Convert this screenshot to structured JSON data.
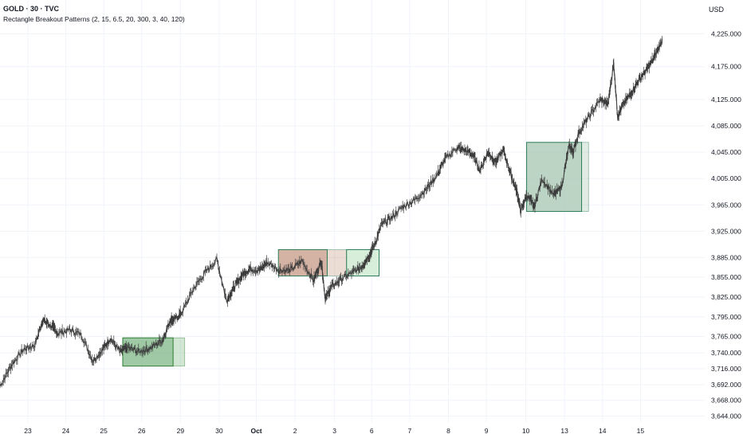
{
  "header": {
    "title": "GOLD · 30 · TVC",
    "indicator": "Rectangle Breakout Patterns (2, 15, 6.5, 20, 300, 3, 40, 120)",
    "currency": "USD"
  },
  "chart_data": {
    "type": "line",
    "title": "GOLD · 30 · TVC",
    "xlabel": "",
    "ylabel": "",
    "ylim": [
      3635,
      4240
    ],
    "xlim": [
      0,
      18.2
    ],
    "grid": true,
    "y_ticks": [
      3644,
      3668,
      3692,
      3716,
      3740,
      3765,
      3795,
      3825,
      3855,
      3885,
      3925,
      3965,
      4005,
      4045,
      4085,
      4125,
      4175,
      4225
    ],
    "x_ticks": [
      {
        "label": "23",
        "x": 0.72,
        "bold": false
      },
      {
        "label": "24",
        "x": 1.7,
        "bold": false
      },
      {
        "label": "25",
        "x": 2.68,
        "bold": false
      },
      {
        "label": "26",
        "x": 3.66,
        "bold": false
      },
      {
        "label": "29",
        "x": 4.66,
        "bold": false
      },
      {
        "label": "30",
        "x": 5.66,
        "bold": false
      },
      {
        "label": "Oct",
        "x": 6.62,
        "bold": true
      },
      {
        "label": "2",
        "x": 7.62,
        "bold": false
      },
      {
        "label": "3",
        "x": 8.64,
        "bold": false
      },
      {
        "label": "6",
        "x": 9.6,
        "bold": false
      },
      {
        "label": "7",
        "x": 10.58,
        "bold": false
      },
      {
        "label": "8",
        "x": 11.58,
        "bold": false
      },
      {
        "label": "9",
        "x": 12.56,
        "bold": false
      },
      {
        "label": "10",
        "x": 13.58,
        "bold": false
      },
      {
        "label": "13",
        "x": 14.58,
        "bold": false
      },
      {
        "label": "14",
        "x": 15.56,
        "bold": false
      },
      {
        "label": "15",
        "x": 16.54,
        "bold": false
      }
    ],
    "series": [
      {
        "x": [
          0,
          0.3,
          0.6,
          0.9,
          1.1,
          1.3,
          1.5,
          1.8,
          2.1,
          2.4,
          2.65,
          2.85,
          3.1,
          3.3,
          3.6,
          3.9,
          4.2,
          4.4,
          4.5,
          4.7,
          5.0,
          5.3,
          5.6,
          5.85,
          6.05,
          6.25,
          6.45,
          6.7,
          6.9,
          7.2,
          7.5,
          7.8,
          8.1,
          8.3,
          8.4,
          8.55,
          8.8,
          9.1,
          9.35,
          9.55,
          9.7,
          9.85,
          10.1,
          10.4,
          10.7,
          11.0,
          11.3,
          11.5,
          11.8,
          12.0,
          12.2,
          12.4,
          12.6,
          12.8,
          13.0,
          13.2,
          13.35,
          13.45,
          13.6,
          13.8,
          14.0,
          14.3,
          14.5,
          14.7,
          14.8,
          14.95,
          15.2,
          15.5,
          15.7,
          15.85,
          15.95,
          16.1,
          16.3,
          16.5,
          16.7,
          16.9,
          17.1
        ],
        "y": [
          3690,
          3722,
          3745,
          3752,
          3790,
          3782,
          3770,
          3775,
          3768,
          3728,
          3745,
          3762,
          3742,
          3748,
          3742,
          3748,
          3760,
          3790,
          3790,
          3802,
          3838,
          3862,
          3882,
          3820,
          3840,
          3858,
          3868,
          3866,
          3878,
          3866,
          3866,
          3880,
          3850,
          3880,
          3822,
          3840,
          3852,
          3862,
          3872,
          3890,
          3908,
          3935,
          3945,
          3962,
          3972,
          3988,
          4012,
          4035,
          4052,
          4048,
          4042,
          4018,
          4045,
          4030,
          4048,
          4010,
          3985,
          3955,
          3980,
          3962,
          4005,
          3980,
          3992,
          4055,
          4045,
          4075,
          4098,
          4125,
          4118,
          4180,
          4100,
          4118,
          4135,
          4155,
          4170,
          4190,
          4215
        ]
      }
    ],
    "rectangles": [
      {
        "x0": 3.17,
        "x1": 4.47,
        "y0": 3720,
        "y1": 3763,
        "fill": "#7fb685",
        "stroke": "#2e7d32",
        "tail_x1": 4.77
      },
      {
        "x0": 7.19,
        "x1": 8.45,
        "y0": 3857,
        "y1": 3897,
        "fill": "#c79a85",
        "stroke": "#2e7d5a",
        "tail_x1": 8.95
      },
      {
        "x0": 8.95,
        "x1": 9.79,
        "y0": 3857,
        "y1": 3897,
        "fill": "#c9e8cd",
        "stroke": "#2e7d5a",
        "tail_x1": 9.79
      },
      {
        "x0": 13.6,
        "x1": 15.02,
        "y0": 3955,
        "y1": 4060,
        "fill": "#a6c6b0",
        "stroke": "#2e7d5a",
        "tail_x1": 15.2
      }
    ],
    "colors": {
      "price": "#3c3c3c",
      "grid": "#f0f3fa"
    }
  }
}
